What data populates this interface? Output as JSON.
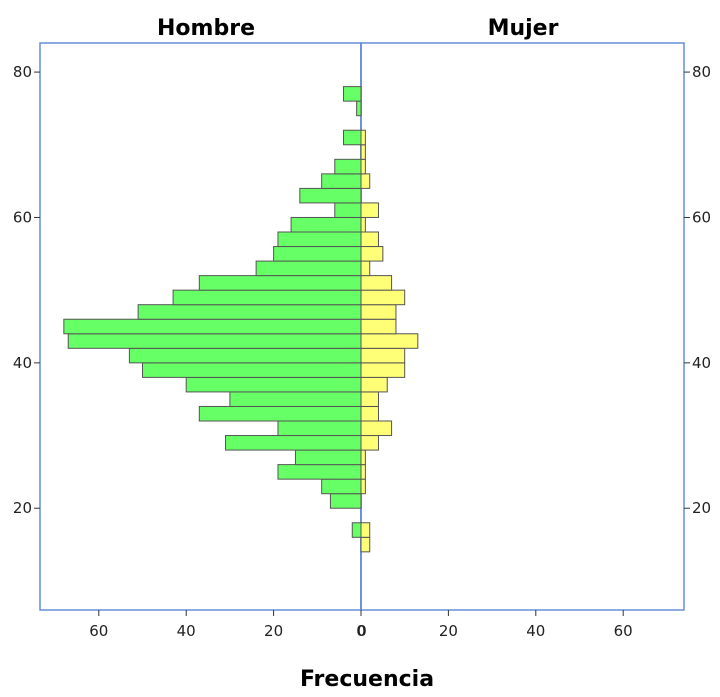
{
  "chart_data": {
    "type": "bar",
    "subtype": "population-pyramid",
    "title": "",
    "xlabel": "Frecuencia",
    "ylabel": "",
    "panels": [
      {
        "name": "Hombre",
        "side": "left",
        "color": "#66FF66"
      },
      {
        "name": "Mujer",
        "side": "right",
        "color": "#FFFF77"
      }
    ],
    "bin_width": 2,
    "bins": [
      14,
      16,
      20,
      22,
      24,
      26,
      28,
      30,
      32,
      34,
      36,
      38,
      40,
      42,
      44,
      46,
      48,
      50,
      52,
      54,
      56,
      58,
      60,
      62,
      64,
      66,
      68,
      70,
      74,
      76
    ],
    "series": [
      {
        "name": "Hombre",
        "values": [
          0,
          2,
          7,
          9,
          19,
          15,
          31,
          19,
          37,
          30,
          40,
          50,
          53,
          67,
          68,
          51,
          43,
          37,
          24,
          20,
          19,
          16,
          6,
          14,
          9,
          6,
          0,
          4,
          1,
          4
        ]
      },
      {
        "name": "Mujer",
        "values": [
          2,
          2,
          0,
          1,
          1,
          1,
          4,
          7,
          4,
          4,
          6,
          10,
          10,
          13,
          8,
          8,
          10,
          7,
          2,
          5,
          4,
          1,
          4,
          0,
          2,
          1,
          1,
          1,
          0,
          0
        ]
      }
    ],
    "xticks": [
      0,
      20,
      40,
      60
    ],
    "xlim": [
      0,
      74
    ],
    "yticks": [
      20,
      40,
      60,
      80
    ],
    "ylim": [
      6,
      84
    ],
    "grid": false,
    "legend": "none"
  },
  "axes": {
    "left_header": "Hombre",
    "right_header": "Mujer",
    "xlabel": "Frecuencia"
  },
  "colors": {
    "frame": "#5B87D6",
    "bar_outline": "#555555"
  }
}
